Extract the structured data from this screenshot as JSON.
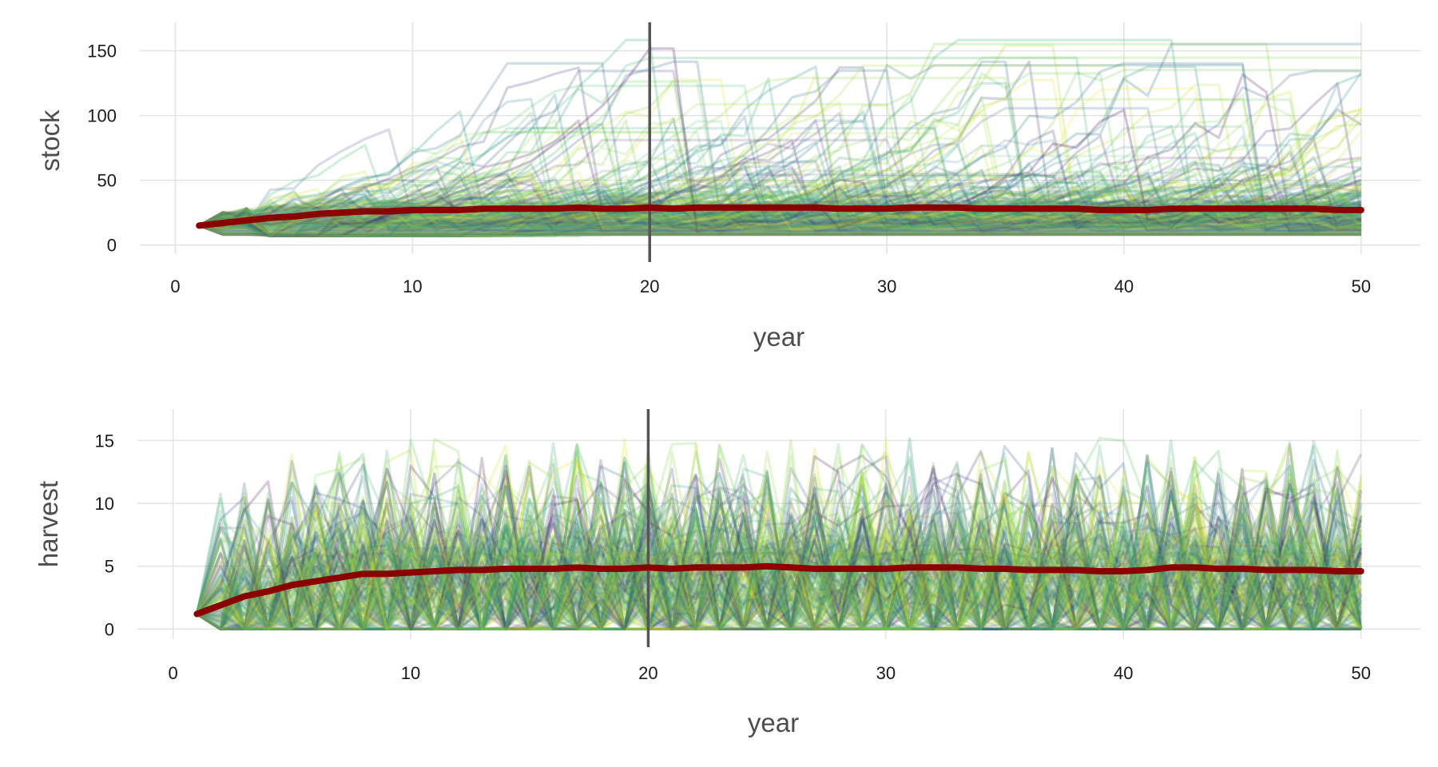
{
  "chart_data": [
    {
      "type": "line",
      "panel": "top",
      "xlabel": "year",
      "ylabel": "stock",
      "xlim": [
        -1.5,
        52.5
      ],
      "ylim": [
        -7,
        172
      ],
      "xticks": [
        0,
        10,
        20,
        30,
        40,
        50
      ],
      "yticks": [
        0,
        50,
        100,
        150
      ],
      "grid": true,
      "reference_line_x": 20,
      "simulations": {
        "count": 300,
        "style": "faint overlapping trajectories colored by viridis palette",
        "peak_max": 162
      },
      "series": [
        {
          "x": [
            1,
            2,
            3,
            4,
            5,
            6,
            7,
            8,
            9,
            10,
            11,
            12,
            13,
            14,
            15,
            16,
            17,
            18,
            19,
            20,
            21,
            22,
            23,
            24,
            25,
            26,
            27,
            28,
            29,
            30,
            31,
            32,
            33,
            34,
            35,
            36,
            37,
            38,
            39,
            40,
            41,
            42,
            43,
            44,
            45,
            46,
            47,
            48,
            49,
            50
          ],
          "values": [
            15,
            17,
            19,
            21,
            22,
            24,
            25,
            26,
            26,
            27,
            27,
            27,
            28,
            28,
            28,
            28,
            29,
            28,
            28,
            29,
            28,
            29,
            29,
            29,
            29,
            29,
            29,
            28,
            28,
            28,
            29,
            29,
            29,
            28,
            28,
            28,
            28,
            28,
            27,
            27,
            27,
            28,
            28,
            28,
            28,
            28,
            28,
            28,
            27,
            27
          ]
        }
      ]
    },
    {
      "type": "line",
      "panel": "bottom",
      "xlabel": "year",
      "ylabel": "harvest",
      "xlim": [
        -1.5,
        52.5
      ],
      "ylim": [
        -0.8,
        17.5
      ],
      "xticks": [
        0,
        10,
        20,
        30,
        40,
        50
      ],
      "yticks": [
        0,
        5,
        10,
        15
      ],
      "grid": true,
      "reference_line_x": 20,
      "simulations": {
        "count": 300,
        "style": "faint overlapping trajectories colored by viridis palette",
        "peak_max": 16.4
      },
      "series": [
        {
          "x": [
            1,
            2,
            3,
            4,
            5,
            6,
            7,
            8,
            9,
            10,
            11,
            12,
            13,
            14,
            15,
            16,
            17,
            18,
            19,
            20,
            21,
            22,
            23,
            24,
            25,
            26,
            27,
            28,
            29,
            30,
            31,
            32,
            33,
            34,
            35,
            36,
            37,
            38,
            39,
            40,
            41,
            42,
            43,
            44,
            45,
            46,
            47,
            48,
            49,
            50
          ],
          "values": [
            1.2,
            1.9,
            2.6,
            3.0,
            3.5,
            3.8,
            4.1,
            4.4,
            4.4,
            4.5,
            4.6,
            4.7,
            4.7,
            4.8,
            4.8,
            4.8,
            4.9,
            4.8,
            4.8,
            4.9,
            4.8,
            4.9,
            4.9,
            4.9,
            5.0,
            4.9,
            4.8,
            4.8,
            4.8,
            4.8,
            4.9,
            4.9,
            4.9,
            4.8,
            4.8,
            4.7,
            4.7,
            4.7,
            4.6,
            4.6,
            4.7,
            4.9,
            4.9,
            4.8,
            4.8,
            4.7,
            4.7,
            4.7,
            4.6,
            4.6
          ]
        }
      ]
    }
  ],
  "colors": {
    "mean_line": "#8b0000",
    "reference_line": "#555555",
    "grid": "#e3e3e3",
    "palette": [
      "#440154",
      "#3b528b",
      "#21918c",
      "#5ec962",
      "#bddf26",
      "#fde725"
    ]
  }
}
